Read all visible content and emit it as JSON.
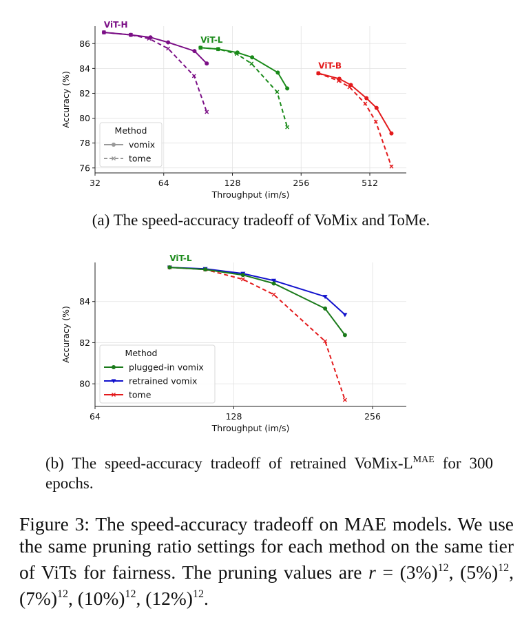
{
  "chart_data": [
    {
      "type": "line",
      "id": "a",
      "xlabel": "Throughput (im/s)",
      "ylabel": "Accuracy (%)",
      "xscale": "log2",
      "xlim": [
        32,
        740
      ],
      "ylim": [
        75.6,
        87.4
      ],
      "xticks": [
        32,
        64,
        128,
        256,
        512
      ],
      "yticks": [
        76,
        78,
        80,
        82,
        84,
        86
      ],
      "grid": true,
      "legend": {
        "title": "Method",
        "placement": "lower-left",
        "entries": [
          {
            "label": "vomix",
            "style": "solid",
            "marker": "dot",
            "color": "#999999"
          },
          {
            "label": "tome",
            "style": "dashed",
            "marker": "x",
            "color": "#999999"
          }
        ]
      },
      "groups": [
        {
          "name": "ViT-H",
          "color": "#7b0f86",
          "series": [
            {
              "name": "vomix",
              "style": "solid",
              "marker": "dot",
              "x": [
                35.0,
                45.9,
                56.0,
                66.9,
                87.3,
                98.8
              ],
              "y": [
                86.9,
                86.7,
                86.5,
                86.1,
                85.4,
                84.4
              ]
            },
            {
              "name": "tome",
              "style": "dashed",
              "marker": "x",
              "x": [
                35.0,
                45.9,
                55.2,
                66.9,
                86.9,
                98.8
              ],
              "y": [
                86.9,
                86.7,
                86.4,
                85.6,
                83.4,
                80.5
              ]
            }
          ]
        },
        {
          "name": "ViT-L",
          "color": "#1a8a1a",
          "series": [
            {
              "name": "vomix",
              "style": "solid",
              "marker": "dot",
              "x": [
                92.8,
                110.9,
                134.6,
                156.2,
                202.3,
                222.6
              ],
              "y": [
                85.67,
                85.56,
                85.28,
                84.89,
                83.67,
                82.39
              ]
            },
            {
              "name": "tome",
              "style": "dashed",
              "marker": "x",
              "x": [
                92.8,
                110.9,
                133.7,
                155.2,
                201.0,
                222.6
              ],
              "y": [
                85.67,
                85.56,
                85.17,
                84.39,
                82.11,
                79.28
              ]
            }
          ]
        },
        {
          "name": "ViT-B",
          "color": "#e31a1c",
          "series": [
            {
              "name": "vomix",
              "style": "solid",
              "marker": "dot",
              "x": [
                304.7,
                376.6,
                423.0,
                495.0,
                548.0,
                637.0
              ],
              "y": [
                83.61,
                83.17,
                82.67,
                81.61,
                80.83,
                78.78
              ]
            },
            {
              "name": "tome",
              "style": "dashed",
              "marker": "x",
              "x": [
                304.7,
                374.0,
                417.0,
                489.0,
                544.0,
                637.0
              ],
              "y": [
                83.61,
                83.0,
                82.5,
                81.17,
                79.72,
                76.11
              ]
            }
          ]
        }
      ]
    },
    {
      "type": "line",
      "id": "b",
      "xlabel": "Throughput (im/s)",
      "ylabel": "Accuracy (%)",
      "xscale": "log2",
      "xlim": [
        64,
        303
      ],
      "ylim": [
        78.9,
        85.9
      ],
      "xticks": [
        64,
        128,
        256
      ],
      "yticks": [
        80,
        82,
        84
      ],
      "grid": true,
      "group_label": {
        "text": "ViT-L",
        "color": "#1a8a1a"
      },
      "legend": {
        "title": "Method",
        "placement": "lower-left",
        "entries": [
          {
            "label": "plugged-in vomix",
            "style": "solid",
            "marker": "dot",
            "color": "#1a7a1a"
          },
          {
            "label": "retrained vomix",
            "style": "solid",
            "marker": "triangle-down",
            "color": "#1010cc"
          },
          {
            "label": "tome",
            "style": "solid",
            "marker": "x",
            "color": "#e31a1c"
          }
        ]
      },
      "series": [
        {
          "name": "plugged-in vomix",
          "color": "#1a7a1a",
          "style": "solid",
          "marker": "dot",
          "x": [
            92.9,
            111.0,
            134.0,
            156.3,
            202.0,
            223.0
          ],
          "y": [
            85.66,
            85.56,
            85.29,
            84.88,
            83.66,
            82.37
          ]
        },
        {
          "name": "retrained vomix",
          "color": "#1010cc",
          "style": "solid",
          "marker": "triangle-down",
          "x": [
            92.9,
            111.0,
            134.0,
            156.3,
            202.0,
            223.0
          ],
          "y": [
            85.66,
            85.59,
            85.36,
            85.02,
            84.24,
            83.36
          ]
        },
        {
          "name": "tome",
          "color": "#e31a1c",
          "style": "dashed",
          "marker": "x",
          "x": [
            92.9,
            111.0,
            134.0,
            156.3,
            202.0,
            223.0
          ],
          "y": [
            85.66,
            85.56,
            85.08,
            84.34,
            82.07,
            79.22
          ]
        }
      ]
    }
  ],
  "captions": {
    "a": "(a) The speed-accuracy tradeoff of VoMix and ToMe.",
    "b_main": "(b) The speed-accuracy tradeoff of retrained VoMix-L",
    "b_sup": "MAE",
    "b_tail": " for 300 epochs.",
    "figure_text": "Figure 3: The speed-accuracy tradeoff on MAE models. We use the same pruning ratio settings for each method on the same tier of ViTs for fairness. The pruning values are ",
    "figure_math_var": "r",
    "figure_math_eq": " = ",
    "pruning_values": [
      "(3%)",
      "(5%)",
      "(7%)",
      "(10%)",
      "(12%)"
    ],
    "pruning_exponent": "12"
  }
}
